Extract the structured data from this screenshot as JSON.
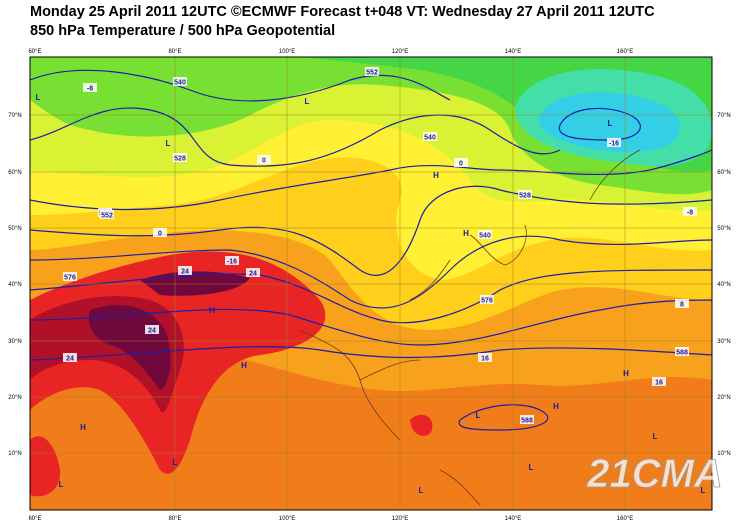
{
  "header": {
    "line1": "Monday 25 April 2011 12UTC ©ECMWF Forecast t+048 VT: Wednesday 27 April 2011 12UTC",
    "line2": "850 hPa Temperature / 500 hPa Geopotential"
  },
  "map": {
    "longitude_labels": [
      "60°E",
      "80°E",
      "100°E",
      "120°E",
      "140°E",
      "160°E"
    ],
    "latitude_labels": [
      "70°N",
      "60°N",
      "50°N",
      "40°N",
      "30°N",
      "20°N",
      "10°N"
    ],
    "contour_labels": [
      "540",
      "552",
      "528",
      "540",
      "564",
      "576",
      "552",
      "540",
      "528",
      "576",
      "588",
      "588",
      "0",
      "0",
      "-8",
      "-16",
      "-8",
      "16",
      "16",
      "24",
      "24",
      "24",
      "-16",
      "24",
      "8",
      "0"
    ],
    "pressure_centers": [
      "L",
      "L",
      "L",
      "H",
      "H",
      "L",
      "H",
      "H",
      "H",
      "L",
      "H",
      "L",
      "L",
      "L",
      "H",
      "L",
      "L",
      "L"
    ],
    "watermark": "21CMA"
  }
}
